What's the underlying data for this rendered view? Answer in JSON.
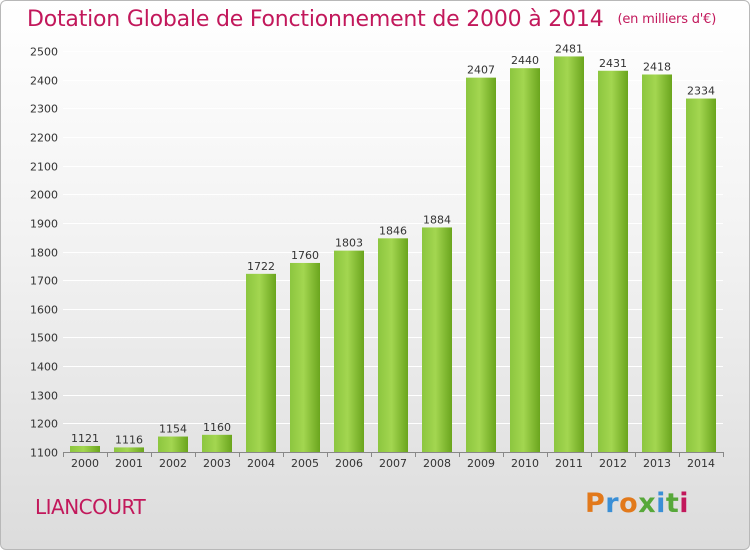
{
  "header": {
    "title": "Dotation Globale de Fonctionnement de 2000 à 2014",
    "unit": "(en milliers d'€)"
  },
  "footer": {
    "town": "LIANCOURT",
    "logo": "Proxiti"
  },
  "colors": {
    "title": "#c2185b",
    "bar_light": "#9fd44b",
    "bar_dark": "#6aa51d",
    "grid": "#ffffff",
    "logo_letters": [
      "#e2791b",
      "#3a8fd6",
      "#e2791b",
      "#57a83a",
      "#3a8fd6",
      "#57a83a",
      "#c2185b"
    ]
  },
  "chart_data": {
    "type": "bar",
    "categories": [
      "2000",
      "2001",
      "2002",
      "2003",
      "2004",
      "2005",
      "2006",
      "2007",
      "2008",
      "2009",
      "2010",
      "2011",
      "2012",
      "2013",
      "2014"
    ],
    "values": [
      1121,
      1116,
      1154,
      1160,
      1722,
      1760,
      1803,
      1846,
      1884,
      2407,
      2440,
      2481,
      2431,
      2418,
      2334
    ],
    "ylim": [
      1100,
      2500
    ],
    "yticks": [
      1100,
      1200,
      1300,
      1400,
      1500,
      1600,
      1700,
      1800,
      1900,
      2000,
      2100,
      2200,
      2300,
      2400,
      2500
    ],
    "grid": true
  }
}
